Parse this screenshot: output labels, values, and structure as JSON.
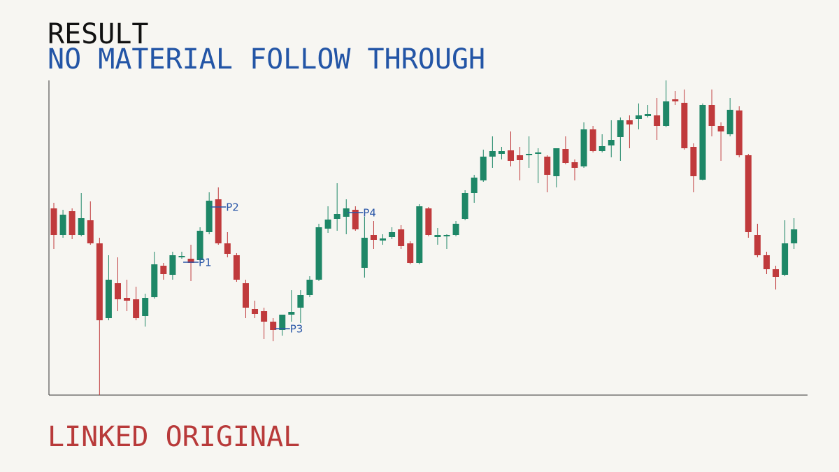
{
  "chart_data": {
    "type": "candlestick",
    "title": "RESULT",
    "subtitle": "NO MATERIAL FOLLOW THROUGH",
    "ylim": [
      0,
      450
    ],
    "up_color": "#1e8767",
    "down_color": "#c03a3c",
    "annotation_color": "#2a57a8",
    "open": [
      267,
      229,
      263,
      229,
      250,
      217,
      110,
      160,
      139,
      137,
      113,
      140,
      185,
      172,
      197,
      195,
      193,
      233,
      280,
      217,
      200,
      160,
      123,
      120,
      105,
      93,
      115,
      125,
      143,
      165,
      238,
      252,
      255,
      265,
      182,
      229,
      221,
      226,
      237,
      217,
      189,
      267,
      226,
      227,
      229,
      252,
      289,
      307,
      341,
      345,
      350,
      343,
      343,
      345,
      341,
      313,
      352,
      333,
      327,
      380,
      349,
      357,
      369,
      393,
      395,
      399,
      400,
      385,
      423,
      418,
      355,
      308,
      415,
      385,
      373,
      407,
      343,
      229,
      200,
      180,
      172,
      217
    ],
    "high": [
      275,
      265,
      267,
      289,
      277,
      225,
      200,
      197,
      165,
      155,
      145,
      205,
      189,
      205,
      205,
      215,
      240,
      290,
      297,
      233,
      203,
      165,
      135,
      125,
      110,
      115,
      150,
      150,
      170,
      245,
      270,
      303,
      280,
      270,
      255,
      249,
      230,
      240,
      243,
      220,
      273,
      269,
      239,
      230,
      249,
      293,
      315,
      351,
      370,
      355,
      377,
      355,
      370,
      353,
      343,
      353,
      370,
      337,
      390,
      385,
      373,
      393,
      397,
      400,
      417,
      415,
      425,
      450,
      435,
      437,
      360,
      417,
      437,
      390,
      425,
      413,
      345,
      245,
      205,
      185,
      250,
      253
    ],
    "low": [
      209,
      225,
      223,
      227,
      215,
      0,
      107,
      120,
      120,
      107,
      98,
      138,
      165,
      165,
      195,
      163,
      187,
      230,
      215,
      197,
      162,
      110,
      110,
      80,
      77,
      85,
      105,
      103,
      140,
      163,
      232,
      235,
      230,
      235,
      168,
      209,
      215,
      223,
      209,
      187,
      187,
      227,
      215,
      209,
      227,
      250,
      275,
      305,
      325,
      337,
      327,
      307,
      325,
      303,
      290,
      297,
      330,
      307,
      325,
      347,
      347,
      340,
      335,
      353,
      380,
      397,
      365,
      383,
      415,
      351,
      290,
      307,
      370,
      335,
      370,
      340,
      225,
      197,
      173,
      151,
      170,
      209
    ],
    "close": [
      229,
      258,
      229,
      253,
      217,
      107,
      165,
      137,
      135,
      110,
      139,
      187,
      173,
      200,
      199,
      189,
      235,
      278,
      217,
      202,
      165,
      125,
      116,
      105,
      93,
      115,
      119,
      143,
      165,
      240,
      251,
      259,
      267,
      237,
      225,
      222,
      224,
      233,
      213,
      189,
      270,
      229,
      229,
      229,
      245,
      289,
      311,
      341,
      349,
      349,
      335,
      336,
      345,
      347,
      315,
      353,
      332,
      325,
      380,
      349,
      356,
      365,
      393,
      387,
      400,
      402,
      385,
      420,
      420,
      353,
      313,
      415,
      385,
      377,
      408,
      343,
      233,
      200,
      180,
      169,
      217,
      237
    ],
    "annotations": [
      {
        "label": "P1",
        "index": 15,
        "value": 190
      },
      {
        "label": "P2",
        "index": 18,
        "value": 269
      },
      {
        "label": "P3",
        "index": 25,
        "value": 95
      },
      {
        "label": "P4",
        "index": 33,
        "value": 261
      }
    ]
  },
  "footer": {
    "link": "LINKED ORIGINAL"
  }
}
